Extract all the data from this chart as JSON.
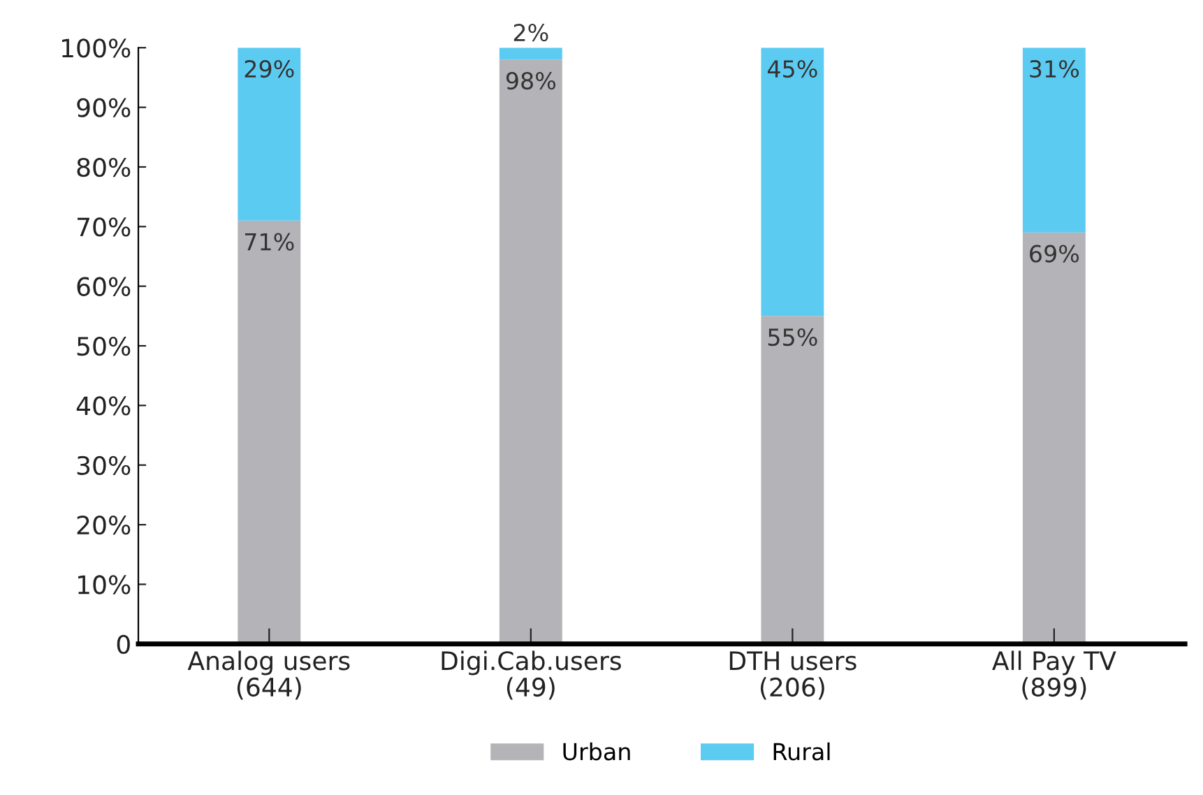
{
  "chart_data": {
    "type": "bar",
    "stacked": true,
    "categories": [
      "Analog users\n(644)",
      "Digi.Cab.users\n(49)",
      "DTH users\n(206)",
      "All Pay TV\n(899)"
    ],
    "series": [
      {
        "name": "Urban",
        "color": "#b4b4b8",
        "values": [
          71,
          98,
          55,
          69
        ],
        "value_labels": [
          "71%",
          "98%",
          "55%",
          "69%"
        ]
      },
      {
        "name": "Rural",
        "color": "#5ccbf2",
        "values": [
          29,
          2,
          45,
          31
        ],
        "value_labels": [
          "29%",
          "2%",
          "45%",
          "31%"
        ]
      }
    ],
    "ylim": [
      0,
      100
    ],
    "yticks": [
      {
        "value": 0,
        "label": "0"
      },
      {
        "value": 10,
        "label": "10%"
      },
      {
        "value": 20,
        "label": "20%"
      },
      {
        "value": 30,
        "label": "30%"
      },
      {
        "value": 40,
        "label": "40%"
      },
      {
        "value": 50,
        "label": "50%"
      },
      {
        "value": 60,
        "label": "60%"
      },
      {
        "value": 70,
        "label": "70%"
      },
      {
        "value": 80,
        "label": "80%"
      },
      {
        "value": 90,
        "label": "90%"
      },
      {
        "value": 100,
        "label": "100%"
      }
    ],
    "legend": "bottom",
    "grid": false
  }
}
